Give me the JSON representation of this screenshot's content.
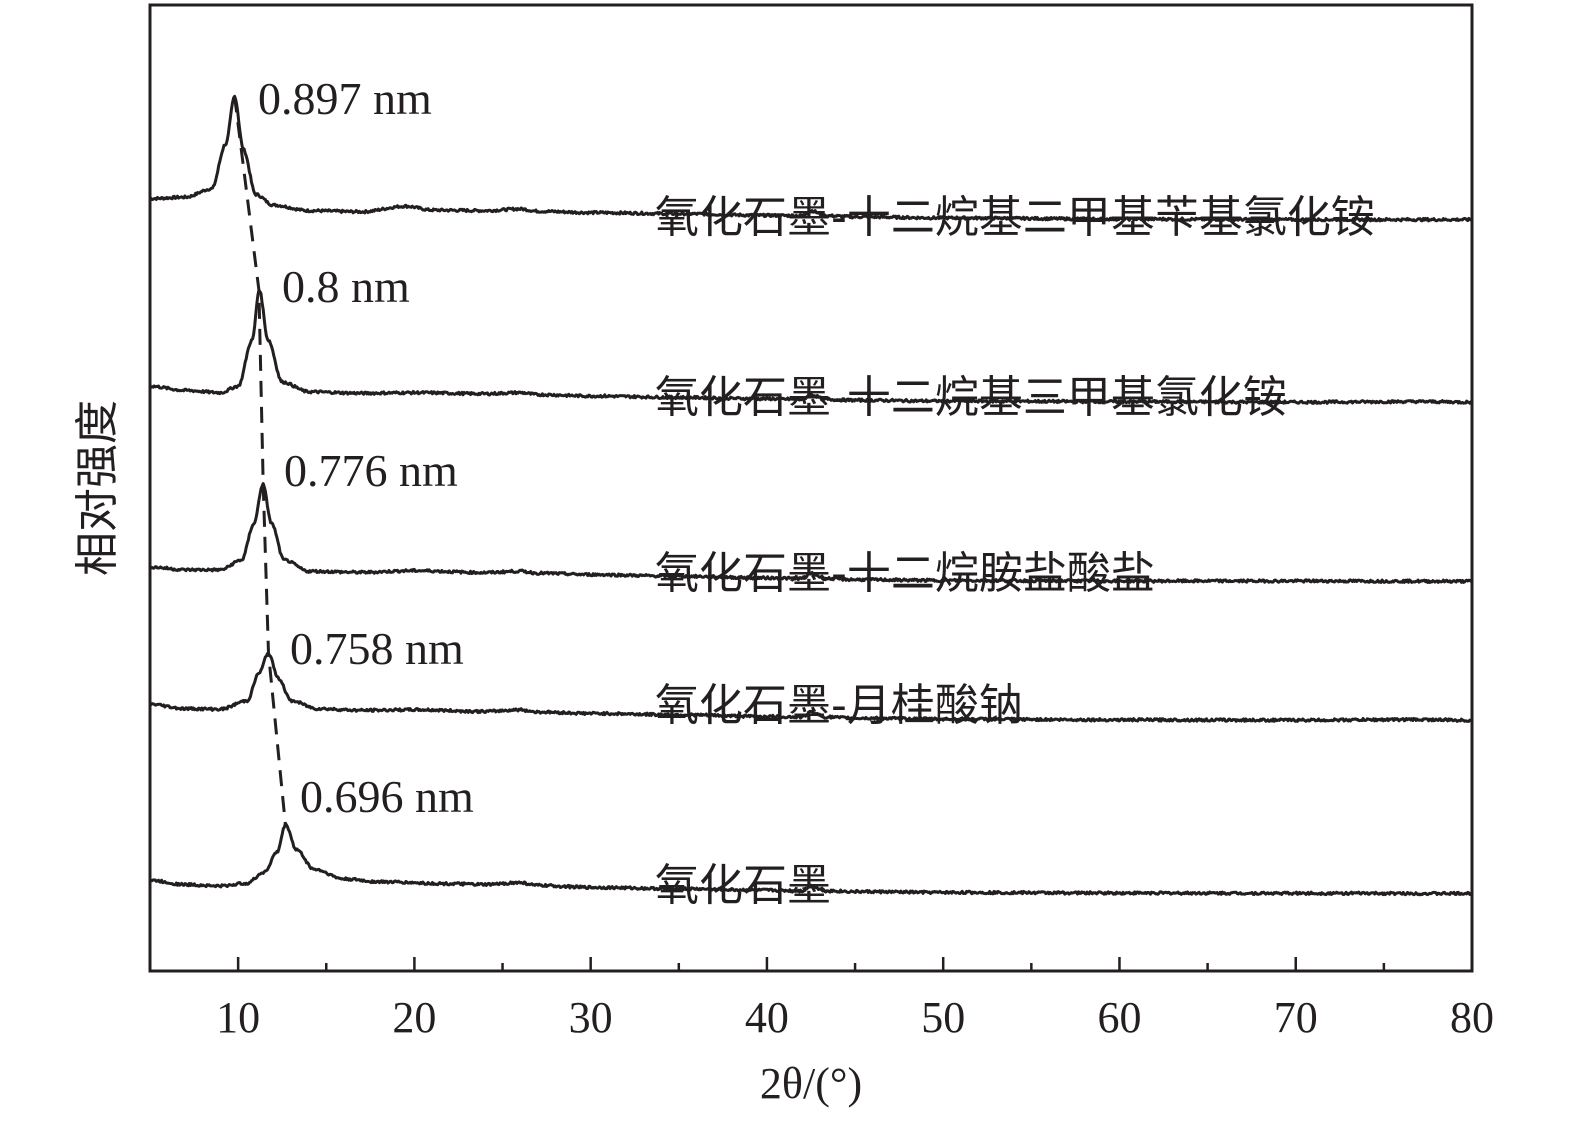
{
  "chart_data": {
    "type": "line",
    "xlabel": "2θ/(°)",
    "ylabel": "相对强度",
    "xlim": [
      5,
      80
    ],
    "x_ticks": [
      10,
      20,
      30,
      40,
      50,
      60,
      70,
      80
    ],
    "y_ticks_shown": false,
    "grid": false,
    "series": [
      {
        "name": "氧化石墨-十二烷基二甲基苄基氯化铵",
        "peak_label": "0.897 nm",
        "color": "#231f20",
        "points": [
          [
            5,
            0.55
          ],
          [
            7,
            0.6
          ],
          [
            8.5,
            0.9
          ],
          [
            9.3,
            2.5
          ],
          [
            9.8,
            4.2
          ],
          [
            10.3,
            2.3
          ],
          [
            11,
            0.7
          ],
          [
            12,
            0.32
          ],
          [
            14,
            0.12
          ],
          [
            17,
            0.08
          ],
          [
            19.5,
            0.28
          ],
          [
            21,
            0.14
          ],
          [
            24,
            0.12
          ],
          [
            26,
            0.18
          ],
          [
            27,
            0.1
          ],
          [
            30,
            0.05
          ],
          [
            35,
            0.01
          ],
          [
            40,
            -0.05
          ],
          [
            42,
            -0.06
          ],
          [
            42.5,
            0.12
          ],
          [
            43.3,
            -0.06
          ],
          [
            45,
            -0.1
          ],
          [
            50,
            -0.14
          ],
          [
            60,
            -0.18
          ],
          [
            70,
            -0.2
          ],
          [
            80,
            -0.2
          ]
        ]
      },
      {
        "name": "氧化石墨-十二烷基三甲基氯化铵",
        "peak_label": "0.8 nm",
        "color": "#231f20",
        "points": [
          [
            5,
            0.35
          ],
          [
            7,
            0.2
          ],
          [
            9,
            0.12
          ],
          [
            10,
            0.35
          ],
          [
            10.8,
            2
          ],
          [
            11.2,
            3.8
          ],
          [
            11.7,
            2
          ],
          [
            12.5,
            0.5
          ],
          [
            14,
            0.15
          ],
          [
            17,
            0.1
          ],
          [
            20,
            0.12
          ],
          [
            24,
            0.08
          ],
          [
            26,
            0.12
          ],
          [
            27,
            0.05
          ],
          [
            30,
            0.0
          ],
          [
            35,
            -0.05
          ],
          [
            40,
            -0.1
          ],
          [
            42,
            -0.12
          ],
          [
            42.5,
            0.05
          ],
          [
            43.3,
            -0.12
          ],
          [
            45,
            -0.15
          ],
          [
            50,
            -0.18
          ],
          [
            60,
            -0.2
          ],
          [
            70,
            -0.22
          ],
          [
            77,
            -0.2
          ],
          [
            80,
            -0.22
          ]
        ]
      },
      {
        "name": "氧化石墨-十二烷胺盐酸盐",
        "peak_label": "0.776 nm",
        "color": "#231f20",
        "points": [
          [
            5,
            0.25
          ],
          [
            7,
            0.15
          ],
          [
            9,
            0.15
          ],
          [
            10.2,
            0.5
          ],
          [
            10.9,
            1.8
          ],
          [
            11.4,
            3.2
          ],
          [
            11.9,
            1.8
          ],
          [
            12.6,
            0.5
          ],
          [
            14,
            0.1
          ],
          [
            17,
            0.06
          ],
          [
            20,
            0.12
          ],
          [
            24,
            0.05
          ],
          [
            26,
            0.1
          ],
          [
            27,
            0.03
          ],
          [
            30,
            -0.02
          ],
          [
            35,
            -0.08
          ],
          [
            40,
            -0.14
          ],
          [
            42,
            -0.16
          ],
          [
            42.5,
            0.02
          ],
          [
            43.3,
            -0.16
          ],
          [
            45,
            -0.2
          ],
          [
            50,
            -0.23
          ],
          [
            60,
            -0.25
          ],
          [
            70,
            -0.25
          ],
          [
            80,
            -0.26
          ]
        ]
      },
      {
        "name": "氧化石墨-月桂酸钠",
        "peak_label": "0.758 nm",
        "color": "#231f20",
        "points": [
          [
            5,
            0.28
          ],
          [
            7,
            0.12
          ],
          [
            9,
            0.1
          ],
          [
            10.5,
            0.4
          ],
          [
            11.2,
            1.4
          ],
          [
            11.7,
            2.1
          ],
          [
            12.3,
            1.2
          ],
          [
            13,
            0.4
          ],
          [
            14.5,
            0.12
          ],
          [
            17,
            0.06
          ],
          [
            20,
            0.08
          ],
          [
            24,
            0.02
          ],
          [
            26,
            0.08
          ],
          [
            27,
            0.0
          ],
          [
            30,
            -0.05
          ],
          [
            35,
            -0.1
          ],
          [
            40,
            -0.16
          ],
          [
            42,
            -0.18
          ],
          [
            42.5,
            0.0
          ],
          [
            43.3,
            -0.18
          ],
          [
            45,
            -0.22
          ],
          [
            50,
            -0.25
          ],
          [
            60,
            -0.28
          ],
          [
            70,
            -0.29
          ],
          [
            77,
            -0.27
          ],
          [
            80,
            -0.3
          ]
        ]
      },
      {
        "name": "氧化石墨",
        "peak_label": "0.696 nm",
        "color": "#231f20",
        "points": [
          [
            5,
            0.2
          ],
          [
            7,
            0.05
          ],
          [
            9,
            0.0
          ],
          [
            10.5,
            0.1
          ],
          [
            11.5,
            0.5
          ],
          [
            12.2,
            1.2
          ],
          [
            12.7,
            2.2
          ],
          [
            13.3,
            1.3
          ],
          [
            14.3,
            0.6
          ],
          [
            16,
            0.25
          ],
          [
            18,
            0.15
          ],
          [
            22,
            0.08
          ],
          [
            24,
            0.05
          ],
          [
            26,
            0.12
          ],
          [
            27,
            0.02
          ],
          [
            30,
            -0.05
          ],
          [
            35,
            -0.1
          ],
          [
            40,
            -0.15
          ],
          [
            42,
            -0.17
          ],
          [
            42.5,
            0.0
          ],
          [
            43.3,
            -0.17
          ],
          [
            45,
            -0.2
          ],
          [
            50,
            -0.23
          ],
          [
            60,
            -0.25
          ],
          [
            70,
            -0.26
          ],
          [
            80,
            -0.27
          ]
        ]
      }
    ],
    "peak_trend_line": {
      "style": "dashed",
      "color": "#231f20"
    }
  }
}
